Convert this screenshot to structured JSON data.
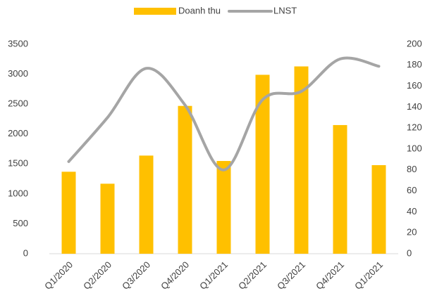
{
  "chart_data": {
    "type": "bar_line",
    "categories": [
      "Q1/2020",
      "Q2/2020",
      "Q3/2020",
      "Q4/2020",
      "Q1/2021",
      "Q2/2021",
      "Q3/2021",
      "Q4/2021",
      "Q1/2021"
    ],
    "series": [
      {
        "name": "Doanh thu",
        "color": "#FFC000",
        "type": "bar",
        "axis": "y",
        "values": [
          1370,
          1170,
          1640,
          2470,
          1550,
          2990,
          3130,
          2150,
          1480
        ]
      },
      {
        "name": "LNST",
        "color": "#A5A5A5",
        "type": "line",
        "axis": "y2",
        "values": [
          88,
          130,
          177,
          142,
          80,
          147,
          155,
          186,
          179
        ]
      }
    ],
    "ylim": [
      0,
      3500
    ],
    "yticks": [
      0,
      500,
      1000,
      1500,
      2000,
      2500,
      3000,
      3500
    ],
    "y2lim": [
      0,
      200
    ],
    "y2ticks": [
      0,
      20,
      40,
      60,
      80,
      100,
      120,
      140,
      160,
      180,
      200
    ],
    "grid": false,
    "legend": "top"
  }
}
